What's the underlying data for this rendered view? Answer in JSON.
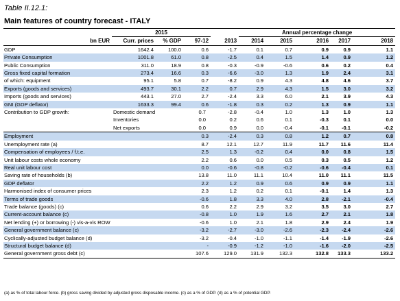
{
  "caption": "Table II.12.1:",
  "title": "Main features of country forecast - ITALY",
  "header": {
    "year_2015": "2015",
    "annual_change": "Annual percentage change",
    "col_label": "bn EUR",
    "col_curr": "Curr. prices",
    "col_pct": "% GDP",
    "col_avg": "97-12",
    "years": [
      "2013",
      "2014",
      "2015",
      "2016",
      "2017",
      "2018"
    ]
  },
  "rows": [
    {
      "label": "GDP",
      "v": [
        "1642.4",
        "100.0",
        "0.6",
        "-1.7",
        "0.1",
        "0.7",
        "0.9",
        "0.9",
        "1.1"
      ]
    },
    {
      "label": "Private Consumption",
      "v": [
        "1001.8",
        "61.0",
        "0.8",
        "-2.5",
        "0.4",
        "1.5",
        "1.4",
        "0.9",
        "1.2"
      ]
    },
    {
      "label": "Public Consumption",
      "v": [
        "311.0",
        "18.9",
        "0.8",
        "-0.3",
        "-0.9",
        "-0.6",
        "0.6",
        "0.2",
        "0.4"
      ]
    },
    {
      "label": "Gross fixed capital formation",
      "v": [
        "273.4",
        "16.6",
        "0.3",
        "-6.6",
        "-3.0",
        "1.3",
        "1.9",
        "2.4",
        "3.1"
      ]
    },
    {
      "label": "of which: equipment",
      "v": [
        "95.1",
        "5.8",
        "0.7",
        "-8.2",
        "0.9",
        "4.3",
        "4.8",
        "4.6",
        "3.7"
      ]
    },
    {
      "label": "Exports (goods and services)",
      "v": [
        "493.7",
        "30.1",
        "2.2",
        "0.7",
        "2.9",
        "4.3",
        "1.5",
        "3.0",
        "3.2"
      ]
    },
    {
      "label": "Imports (goods and services)",
      "v": [
        "443.1",
        "27.0",
        "2.7",
        "-2.4",
        "3.3",
        "6.0",
        "2.1",
        "3.9",
        "4.3"
      ]
    },
    {
      "label": "GNI (GDP deflator)",
      "v": [
        "1633.3",
        "99.4",
        "0.6",
        "-1.8",
        "0.3",
        "0.2",
        "1.3",
        "0.9",
        "1.1"
      ]
    },
    {
      "label": "Contribution to GDP growth:",
      "sub": "Domestic demand",
      "v": [
        "",
        "",
        "0.7",
        "-2.8",
        "-0.4",
        "1.0",
        "1.3",
        "1.0",
        "1.3"
      ]
    },
    {
      "label": "",
      "sub": "Inventories",
      "v": [
        "",
        "",
        "0.0",
        "0.2",
        "0.6",
        "0.1",
        "-0.3",
        "0.1",
        "0.0"
      ]
    },
    {
      "label": "",
      "sub": "Net exports",
      "v": [
        "",
        "",
        "0.0",
        "0.9",
        "0.0",
        "-0.4",
        "-0.1",
        "-0.1",
        "-0.2"
      ]
    },
    {
      "label": "Employment",
      "v": [
        "",
        "",
        "0.3",
        "-2.4",
        "0.3",
        "0.8",
        "1.2",
        "0.7",
        "0.8"
      ]
    },
    {
      "label": "Unemployment rate (a)",
      "v": [
        "",
        "",
        "8.7",
        "12.1",
        "12.7",
        "11.9",
        "11.7",
        "11.6",
        "11.4"
      ]
    },
    {
      "label": "Compensation of employees / f.t.e.",
      "v": [
        "",
        "",
        "2.5",
        "1.3",
        "-0.2",
        "0.4",
        "0.0",
        "0.8",
        "1.5"
      ]
    },
    {
      "label": "Unit labour costs whole economy",
      "v": [
        "",
        "",
        "2.2",
        "0.6",
        "0.0",
        "0.5",
        "0.3",
        "0.5",
        "1.2"
      ]
    },
    {
      "label": "Real unit labour cost",
      "v": [
        "",
        "",
        "0.0",
        "-0.6",
        "-0.8",
        "-0.2",
        "-0.6",
        "-0.4",
        "0.1"
      ]
    },
    {
      "label": "Saving rate of households (b)",
      "v": [
        "",
        "",
        "13.8",
        "11.0",
        "11.1",
        "10.4",
        "11.0",
        "11.1",
        "11.5"
      ]
    },
    {
      "label": "GDP deflator",
      "v": [
        "",
        "",
        "2.2",
        "1.2",
        "0.9",
        "0.6",
        "0.9",
        "0.9",
        "1.1"
      ]
    },
    {
      "label": "Harmonised index of consumer prices",
      "v": [
        "",
        "",
        "2.3",
        "1.2",
        "0.2",
        "0.1",
        "-0.1",
        "1.4",
        "1.3"
      ]
    },
    {
      "label": "Terms of trade goods",
      "v": [
        "",
        "",
        "-0.6",
        "1.8",
        "3.3",
        "4.0",
        "2.8",
        "-2.1",
        "-0.4"
      ]
    },
    {
      "label": "Trade balance (goods) (c)",
      "v": [
        "",
        "",
        "0.6",
        "2.2",
        "2.9",
        "3.2",
        "3.5",
        "3.0",
        "2.7"
      ]
    },
    {
      "label": "Current-account balance (c)",
      "v": [
        "",
        "",
        "-0.8",
        "1.0",
        "1.9",
        "1.6",
        "2.7",
        "2.1",
        "1.8"
      ]
    },
    {
      "label": "Net lending (+) or borrowing (-) vis-a-vis ROW (c)",
      "v": [
        "",
        "",
        "-0.6",
        "1.0",
        "2.1",
        "1.8",
        "2.9",
        "2.4",
        "1.9"
      ]
    },
    {
      "label": "General government balance (c)",
      "v": [
        "",
        "",
        "-3.2",
        "-2.7",
        "-3.0",
        "-2.6",
        "-2.3",
        "-2.4",
        "-2.6"
      ]
    },
    {
      "label": "Cyclically-adjusted budget balance (d)",
      "v": [
        "",
        "",
        "-3.2",
        "-0.4",
        "-1.0",
        "-1.1",
        "-1.4",
        "-1.9",
        "-2.6"
      ]
    },
    {
      "label": "Structural budget balance (d)",
      "v": [
        "",
        "",
        "-",
        "-0.9",
        "-1.2",
        "-1.0",
        "-1.6",
        "-2.0",
        "-2.5"
      ]
    },
    {
      "label": "General government gross debt (c)",
      "v": [
        "",
        "",
        "107.6",
        "129.0",
        "131.9",
        "132.3",
        "132.8",
        "133.3",
        "133.2"
      ]
    }
  ],
  "footnote": "(a) as % of total labour force. (b) gross saving divided by adjusted gross disposable income. (c) as a % of GDP. (d) as a % of potential GDP.",
  "colors": {
    "shade": "#c6d9f0"
  }
}
